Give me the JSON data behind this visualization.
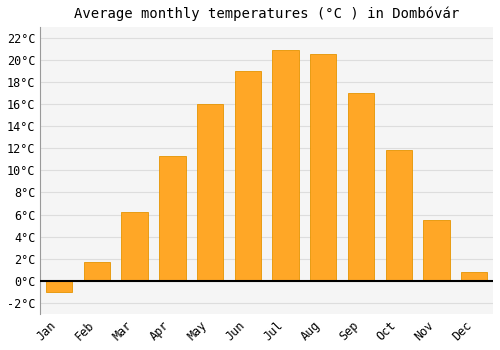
{
  "title": "Average monthly temperatures (°C ) in Dombóvár",
  "months": [
    "Jan",
    "Feb",
    "Mar",
    "Apr",
    "May",
    "Jun",
    "Jul",
    "Aug",
    "Sep",
    "Oct",
    "Nov",
    "Dec"
  ],
  "values": [
    -1.0,
    1.7,
    6.2,
    11.3,
    16.0,
    19.0,
    20.9,
    20.5,
    17.0,
    11.8,
    5.5,
    0.8
  ],
  "bar_color": "#FFA726",
  "bar_edge_color": "#E59400",
  "ylim": [
    -3,
    23
  ],
  "yticks": [
    -2,
    0,
    2,
    4,
    6,
    8,
    10,
    12,
    14,
    16,
    18,
    20,
    22
  ],
  "background_color": "#ffffff",
  "plot_bg_color": "#f5f5f5",
  "grid_color": "#dddddd",
  "title_fontsize": 10,
  "tick_fontsize": 8.5,
  "bar_width": 0.7
}
